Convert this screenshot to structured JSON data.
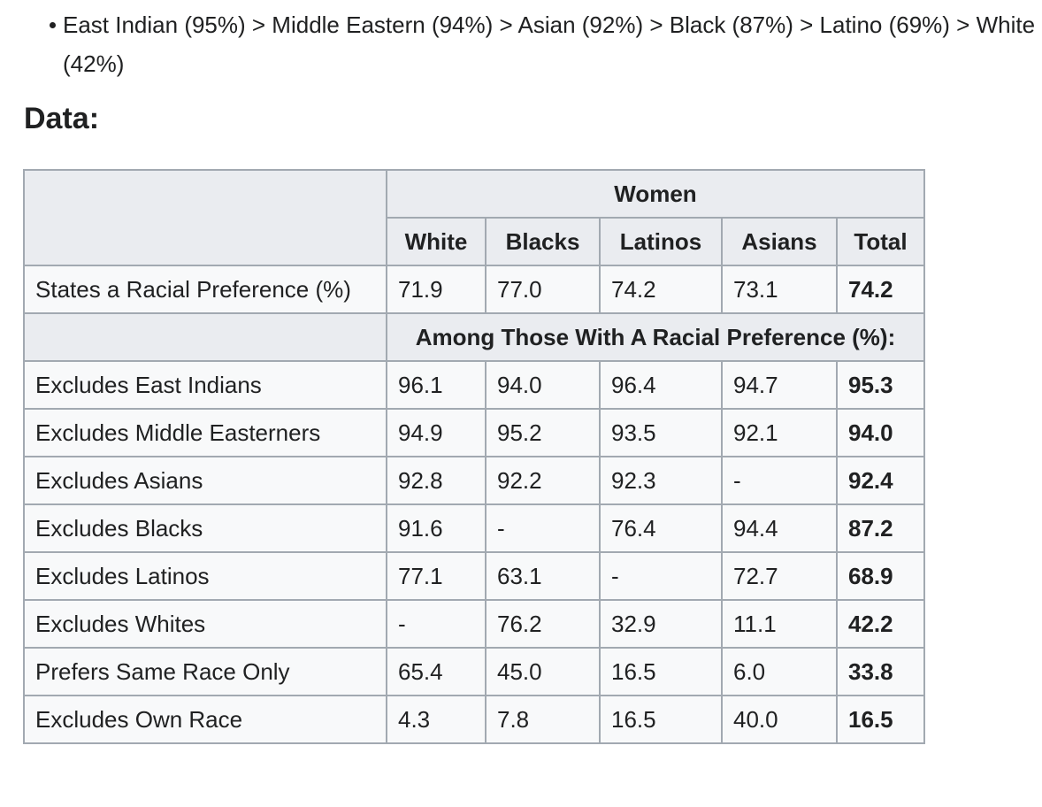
{
  "bullets": [
    "East Indian (95%) > Middle Eastern (94%) > Asian (92%) > Black (87%) > Latino (69%) > White (42%)"
  ],
  "heading": "Data:",
  "table": {
    "group_header": "Women",
    "columns": [
      "White",
      "Blacks",
      "Latinos",
      "Asians",
      "Total"
    ],
    "first_row": {
      "label": "States a Racial Preference (%)",
      "cells": [
        "71.9",
        "77.0",
        "74.2",
        "73.1",
        "74.2"
      ]
    },
    "sub_header": "Among Those With A Racial Preference (%):",
    "rows": [
      {
        "label": "Excludes East Indians",
        "cells": [
          "96.1",
          "94.0",
          "96.4",
          "94.7",
          "95.3"
        ]
      },
      {
        "label": "Excludes Middle Easterners",
        "cells": [
          "94.9",
          "95.2",
          "93.5",
          "92.1",
          "94.0"
        ]
      },
      {
        "label": "Excludes Asians",
        "cells": [
          "92.8",
          "92.2",
          "92.3",
          "-",
          "92.4"
        ]
      },
      {
        "label": "Excludes Blacks",
        "cells": [
          "91.6",
          "-",
          "76.4",
          "94.4",
          "87.2"
        ]
      },
      {
        "label": "Excludes Latinos",
        "cells": [
          "77.1",
          "63.1",
          "-",
          "72.7",
          "68.9"
        ]
      },
      {
        "label": "Excludes Whites",
        "cells": [
          "-",
          "76.2",
          "32.9",
          "11.1",
          "42.2"
        ]
      },
      {
        "label": "Prefers Same Race Only",
        "cells": [
          "65.4",
          "45.0",
          "16.5",
          "6.0",
          "33.8"
        ]
      },
      {
        "label": "Excludes Own Race",
        "cells": [
          "4.3",
          "7.8",
          "16.5",
          "40.0",
          "16.5"
        ]
      }
    ]
  }
}
